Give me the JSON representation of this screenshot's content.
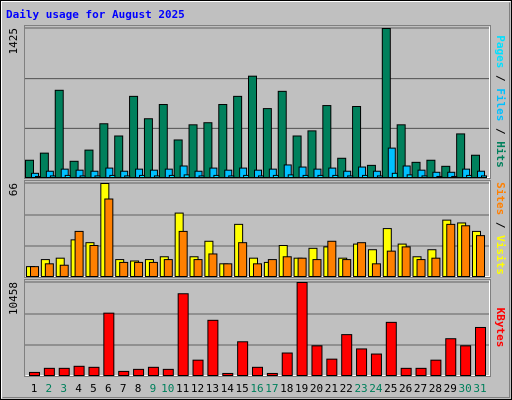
{
  "chart_data": [
    {
      "type": "bar",
      "title": "Daily usage for August 2025",
      "ylim": [
        0,
        1425
      ],
      "yticks": [
        1425
      ],
      "series": [
        {
          "name": "Hits",
          "color": "#00805c",
          "values": [
            165,
            233,
            834,
            155,
            262,
            514,
            397,
            776,
            562,
            698,
            359,
            504,
            524,
            698,
            776,
            969,
            659,
            824,
            397,
            446,
            688,
            184,
            679,
            116,
            1425,
            504,
            145,
            165,
            107,
            417,
            213
          ]
        },
        {
          "name": "Files",
          "color": "#00c0ff",
          "values": [
            40,
            60,
            80,
            70,
            60,
            90,
            60,
            80,
            70,
            80,
            110,
            60,
            90,
            70,
            90,
            70,
            80,
            120,
            100,
            80,
            90,
            60,
            100,
            60,
            281,
            110,
            70,
            50,
            50,
            80,
            60
          ]
        },
        {
          "name": "Pages",
          "color": "#00e0ff",
          "values": [
            10,
            15,
            20,
            15,
            15,
            20,
            15,
            20,
            15,
            20,
            25,
            15,
            20,
            15,
            20,
            15,
            20,
            25,
            20,
            20,
            20,
            15,
            20,
            15,
            40,
            25,
            15,
            10,
            10,
            20,
            15
          ]
        }
      ]
    },
    {
      "type": "bar",
      "ylim": [
        0,
        66
      ],
      "yticks": [
        66
      ],
      "series": [
        {
          "name": "Visits",
          "color": "#ffff00",
          "values": [
            7,
            12,
            13,
            26,
            24,
            66,
            12,
            11,
            12,
            14,
            45,
            14,
            25,
            9,
            37,
            13,
            10,
            22,
            13,
            20,
            21,
            13,
            23,
            19,
            34,
            23,
            14,
            19,
            40,
            38,
            32
          ]
        },
        {
          "name": "Sites",
          "color": "#ff8000",
          "values": [
            7,
            9,
            8,
            32,
            22,
            55,
            10,
            10,
            10,
            12,
            32,
            12,
            16,
            9,
            24,
            9,
            12,
            14,
            13,
            12,
            25,
            12,
            24,
            9,
            18,
            21,
            12,
            13,
            37,
            36,
            29
          ]
        }
      ]
    },
    {
      "type": "bar",
      "ylim": [
        0,
        10458
      ],
      "yticks": [
        10458
      ],
      "categories": [
        "1",
        "2",
        "3",
        "4",
        "5",
        "6",
        "7",
        "8",
        "9",
        "10",
        "11",
        "12",
        "13",
        "14",
        "15",
        "16",
        "17",
        "18",
        "19",
        "20",
        "21",
        "22",
        "23",
        "24",
        "25",
        "26",
        "27",
        "28",
        "29",
        "30",
        "31"
      ],
      "category_colors": [
        "#000000",
        "#00805c",
        "#00805c",
        "#000000",
        "#000000",
        "#000000",
        "#000000",
        "#000000",
        "#00805c",
        "#00805c",
        "#000000",
        "#000000",
        "#000000",
        "#000000",
        "#000000",
        "#00805c",
        "#00805c",
        "#000000",
        "#000000",
        "#000000",
        "#000000",
        "#000000",
        "#00805c",
        "#00805c",
        "#000000",
        "#000000",
        "#000000",
        "#000000",
        "#000000",
        "#00805c",
        "#00805c"
      ],
      "series": [
        {
          "name": "KBytes",
          "color": "#ff0000",
          "values": [
            345,
            805,
            805,
            1034,
            920,
            7010,
            460,
            690,
            920,
            690,
            9194,
            1724,
            6206,
            230,
            3793,
            920,
            230,
            2528,
            10458,
            3333,
            1839,
            4597,
            2988,
            2413,
            5976,
            805,
            805,
            1724,
            4137,
            3333,
            5401
          ]
        }
      ]
    }
  ]
}
